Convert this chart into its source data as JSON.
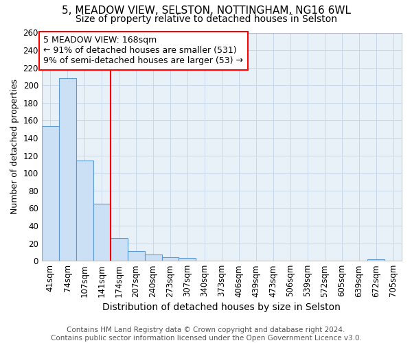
{
  "title_line1": "5, MEADOW VIEW, SELSTON, NOTTINGHAM, NG16 6WL",
  "title_line2": "Size of property relative to detached houses in Selston",
  "xlabel": "Distribution of detached houses by size in Selston",
  "ylabel": "Number of detached properties",
  "categories": [
    "41sqm",
    "74sqm",
    "107sqm",
    "141sqm",
    "174sqm",
    "207sqm",
    "240sqm",
    "273sqm",
    "307sqm",
    "340sqm",
    "373sqm",
    "406sqm",
    "439sqm",
    "473sqm",
    "506sqm",
    "539sqm",
    "572sqm",
    "605sqm",
    "639sqm",
    "672sqm",
    "705sqm"
  ],
  "values": [
    153,
    208,
    114,
    65,
    26,
    11,
    7,
    4,
    3,
    0,
    0,
    0,
    0,
    0,
    0,
    0,
    0,
    0,
    0,
    2,
    0
  ],
  "bar_color": "#cce0f5",
  "bar_edge_color": "#5b9bd5",
  "grid_color": "#c8d8ea",
  "background_color": "#e8f0f8",
  "ref_line_index": 4,
  "ref_line_color": "red",
  "annotation_line1": "5 MEADOW VIEW: 168sqm",
  "annotation_line2": "← 91% of detached houses are smaller (531)",
  "annotation_line3": "9% of semi-detached houses are larger (53) →",
  "annotation_box_color": "red",
  "footer": "Contains HM Land Registry data © Crown copyright and database right 2024.\nContains public sector information licensed under the Open Government Licence v3.0.",
  "ylim": [
    0,
    260
  ],
  "yticks": [
    0,
    20,
    40,
    60,
    80,
    100,
    120,
    140,
    160,
    180,
    200,
    220,
    240,
    260
  ],
  "title_fontsize": 11,
  "subtitle_fontsize": 10,
  "footer_fontsize": 7.5,
  "xlabel_fontsize": 10,
  "ylabel_fontsize": 9,
  "tick_fontsize": 8.5,
  "annot_fontsize": 9
}
